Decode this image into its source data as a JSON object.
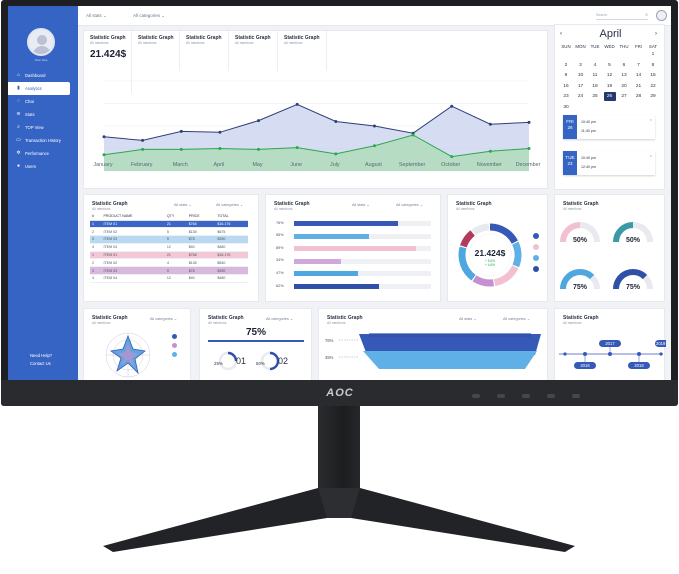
{
  "monitor": {
    "brand": "AOC"
  },
  "sidebar": {
    "user_name": "Jhon Due",
    "items": [
      {
        "label": "Dashboard",
        "icon": "home-icon"
      },
      {
        "label": "Analytics",
        "icon": "bar-chart-icon"
      },
      {
        "label": "Chat",
        "icon": "chat-icon"
      },
      {
        "label": "Stats",
        "icon": "layers-icon"
      },
      {
        "label": "TOP View",
        "icon": "search-icon"
      },
      {
        "label": "Transaction History",
        "icon": "history-icon"
      },
      {
        "label": "Performance",
        "icon": "gear-icon"
      },
      {
        "label": "Users",
        "icon": "users-icon"
      }
    ],
    "help": "Need Help?",
    "contact": "Contact Us"
  },
  "topbar": {
    "filter1": "All stats",
    "filter2": "All categories",
    "search_placeholder": "Search"
  },
  "kpis": [
    {
      "title": "Statistic Graph",
      "subtitle": "All mentions",
      "value": "21.424$"
    },
    {
      "title": "Statistic Graph",
      "subtitle": "All mentions"
    },
    {
      "title": "Statistic Graph",
      "subtitle": "All mentions"
    },
    {
      "title": "Statistic Graph",
      "subtitle": "All mentions"
    },
    {
      "title": "Statistic Graph",
      "subtitle": "All mentions"
    }
  ],
  "line_chart": {
    "months": [
      "January",
      "February",
      "March",
      "April",
      "May",
      "June",
      "July",
      "August",
      "September",
      "October",
      "November",
      "December"
    ],
    "series": [
      {
        "color": "#2f3f78",
        "values": [
          38,
          34,
          44,
          43,
          56,
          74,
          55,
          50,
          42,
          72,
          52,
          54
        ]
      },
      {
        "color": "#2aa84a",
        "values": [
          18,
          24,
          24,
          25,
          24,
          26,
          19,
          28,
          40,
          16,
          22,
          25
        ]
      }
    ]
  },
  "calendar": {
    "month": "April",
    "dow": [
      "SUN",
      "MON",
      "TUE",
      "WED",
      "THU",
      "FRI",
      "SAT"
    ],
    "weeks": [
      [
        "",
        "",
        "",
        "",
        "",
        "",
        "1"
      ],
      [
        "2",
        "3",
        "4",
        "5",
        "6",
        "7",
        "8"
      ],
      [
        "9",
        "10",
        "11",
        "12",
        "13",
        "14",
        "15"
      ],
      [
        "16",
        "17",
        "18",
        "19",
        "20",
        "21",
        "22"
      ],
      [
        "23",
        "24",
        "25",
        "26",
        "27",
        "28",
        "29"
      ],
      [
        "30",
        "",
        "",
        "",
        "",
        "",
        ""
      ]
    ],
    "selected": "26",
    "events": [
      {
        "dow": "FRI",
        "day": "26",
        "t1": "10:40 pm",
        "t2": "11:40 pm"
      },
      {
        "dow": "TUE",
        "day": "23",
        "t1": "10:40 pm",
        "t2": "12:40 pm"
      }
    ]
  },
  "table_card": {
    "title": "Statistic Graph",
    "subtitle": "All mentions",
    "dd1": "All stats",
    "dd2": "All categories",
    "headers": [
      "#",
      "PRODUCT NAME",
      "QTY",
      "PRICE",
      "TOTAL"
    ],
    "rows": [
      [
        "1",
        "ITEM 01",
        "21",
        "$768",
        "$16.176"
      ],
      [
        "2",
        "ITEM 02",
        "5",
        "$135",
        "$675"
      ],
      [
        "3",
        "ITEM 03",
        "5",
        "$78",
        "$390"
      ],
      [
        "4",
        "ITEM 04",
        "12",
        "$40",
        "$480"
      ],
      [
        "1",
        "ITEM 01",
        "21",
        "$768",
        "$16.176"
      ],
      [
        "2",
        "ITEM 02",
        "4",
        "$135",
        "$540"
      ],
      [
        "3",
        "ITEM 03",
        "5",
        "$78",
        "$390"
      ],
      [
        "4",
        "ITEM 04",
        "12",
        "$40",
        "$480"
      ]
    ]
  },
  "hbar_card": {
    "title": "Statistic Graph",
    "subtitle": "All mentions",
    "dd1": "All stats",
    "dd2": "All categories",
    "bars": [
      {
        "label": "76%",
        "value": 76,
        "color": "#3659b8"
      },
      {
        "label": "55%",
        "value": 55,
        "color": "#5fb0e6"
      },
      {
        "label": "89%",
        "value": 89,
        "color": "#f2c1d1"
      },
      {
        "label": "34%",
        "value": 34,
        "color": "#d2a8d8"
      },
      {
        "label": "47%",
        "value": 47,
        "color": "#4ea7df"
      },
      {
        "label": "62%",
        "value": 62,
        "color": "#2f4fa8"
      }
    ]
  },
  "donut_card": {
    "title": "Statistic Graph",
    "subtitle": "All mentions",
    "value": "21.424$",
    "delta1": "+ 5.6%",
    "delta2": "+ 4.8%",
    "segments": [
      {
        "value": 18,
        "color": "#3659b8"
      },
      {
        "value": 14,
        "color": "#5fb0e6"
      },
      {
        "value": 16,
        "color": "#f2c1d1"
      },
      {
        "value": 12,
        "color": "#c58fd0"
      },
      {
        "value": 20,
        "color": "#4ea7df"
      },
      {
        "value": 10,
        "color": "#b23a5e"
      },
      {
        "value": 10,
        "color": "#e7eaf0"
      }
    ],
    "legend_colors": [
      "#3659b8",
      "#f2c1d1",
      "#5fb0e6",
      "#2f4fa8"
    ]
  },
  "gauges_card": {
    "title": "Statistic Graph",
    "subtitle": "All mentions",
    "gauges": [
      {
        "label": "50%",
        "value": 0.5,
        "color": "#f2c1d1"
      },
      {
        "label": "50%",
        "value": 0.5,
        "color": "#3a9aa6"
      },
      {
        "label": "75%",
        "value": 0.75,
        "color": "#4ea7df"
      },
      {
        "label": "75%",
        "value": 0.75,
        "color": "#2f4fa8"
      }
    ]
  },
  "radar_card": {
    "title": "Statistic Graph",
    "subtitle": "All mentions",
    "dd": "All categories",
    "legend_colors": [
      "#3659b8",
      "#c58fd0",
      "#5fb0e6"
    ]
  },
  "rings_card": {
    "title": "Statistic Graph",
    "subtitle": "All mentions",
    "dd": "All categories",
    "value": "75%",
    "rings": [
      {
        "label": "25%",
        "index": "01",
        "value": 0.25
      },
      {
        "label": "50%",
        "index": "02",
        "value": 0.5
      }
    ]
  },
  "funnel_card": {
    "title": "Statistic Graph",
    "subtitle": "All mentions",
    "dd1": "All stats",
    "dd2": "All categories",
    "labels": [
      "76%",
      "35%"
    ]
  },
  "timeline_card": {
    "title": "Statistic Graph",
    "subtitle": "All mentions",
    "years": [
      "2016",
      "2017",
      "2018",
      "2019"
    ]
  }
}
